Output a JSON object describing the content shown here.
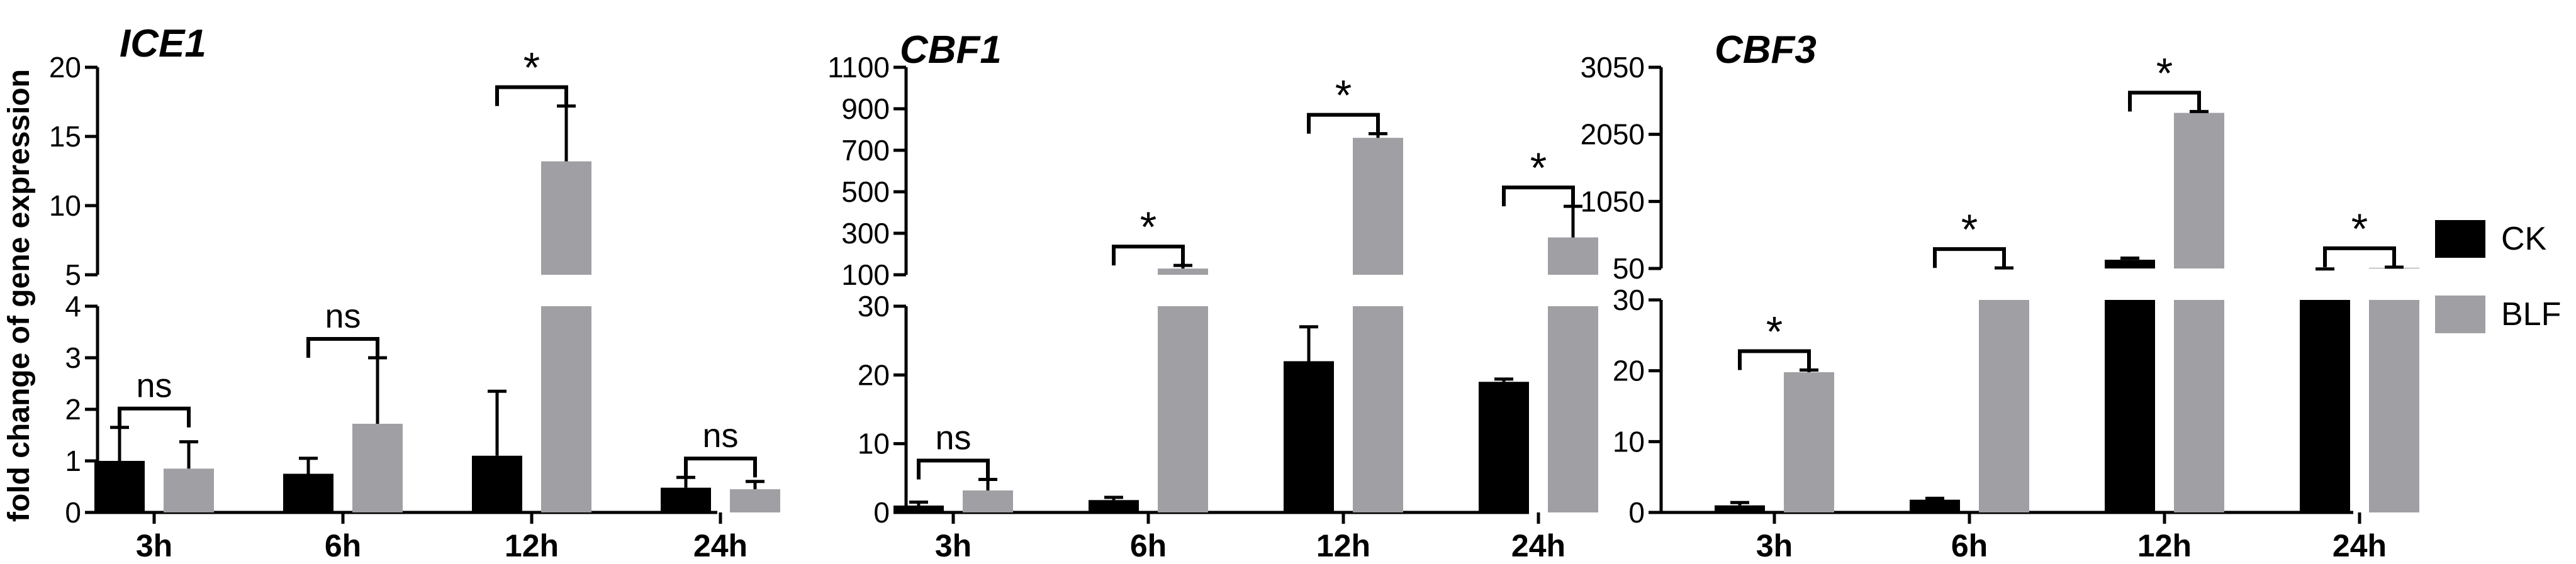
{
  "figure": {
    "ylabel": "fold change of gene expression",
    "legend": [
      {
        "label": "CK",
        "color": "#000000"
      },
      {
        "label": "BLF",
        "color": "#a0a0a4"
      }
    ]
  },
  "chart_data": [
    {
      "type": "bar",
      "title": "ICE1",
      "xlabel": "",
      "ylabel": "fold change of gene expression",
      "categories": [
        "3h",
        "6h",
        "12h",
        "24h"
      ],
      "series": [
        {
          "name": "CK",
          "values": [
            1.0,
            0.75,
            1.1,
            0.48
          ],
          "errors": [
            0.65,
            0.3,
            1.25,
            0.2
          ]
        },
        {
          "name": "BLF",
          "values": [
            0.85,
            1.72,
            13.2,
            0.45
          ],
          "errors": [
            0.52,
            1.28,
            4.0,
            0.15
          ]
        }
      ],
      "annotations": [
        "ns",
        "ns",
        "*",
        "ns"
      ],
      "y_axis_break": true,
      "ylim_lower": [
        0,
        4
      ],
      "ylim_upper": [
        5,
        20
      ],
      "yticks_lower": [
        "0",
        "1",
        "2",
        "3",
        "4"
      ],
      "yticks_upper": [
        "5",
        "10",
        "15",
        "20"
      ]
    },
    {
      "type": "bar",
      "title": "CBF1",
      "xlabel": "",
      "ylabel": "",
      "categories": [
        "3h",
        "6h",
        "12h",
        "24h"
      ],
      "series": [
        {
          "name": "CK",
          "values": [
            1.0,
            1.8,
            22.0,
            19.0
          ],
          "errors": [
            0.5,
            0.4,
            5.0,
            0.4
          ]
        },
        {
          "name": "BLF",
          "values": [
            3.2,
            130,
            760,
            280
          ],
          "errors": [
            1.6,
            15,
            20,
            150
          ]
        }
      ],
      "annotations": [
        "ns",
        "*",
        "*",
        "*"
      ],
      "y_axis_break": true,
      "ylim_lower": [
        0,
        30
      ],
      "ylim_upper": [
        100,
        1100
      ],
      "yticks_lower": [
        "0",
        "10",
        "20",
        "30"
      ],
      "yticks_upper": [
        "100",
        "300",
        "500",
        "700",
        "900",
        "1100"
      ]
    },
    {
      "type": "bar",
      "title": "CBF3",
      "xlabel": "",
      "ylabel": "",
      "categories": [
        "3h",
        "6h",
        "12h",
        "24h"
      ],
      "series": [
        {
          "name": "CK",
          "values": [
            1.0,
            1.8,
            180,
            40
          ],
          "errors": [
            0.4,
            0.2,
            25,
            3
          ]
        },
        {
          "name": "BLF",
          "values": [
            19.8,
            52,
            2370,
            60
          ],
          "errors": [
            0.3,
            6,
            20,
            10
          ]
        }
      ],
      "annotations": [
        "*",
        "*",
        "*",
        "*"
      ],
      "y_axis_break": true,
      "ylim_lower": [
        0,
        30
      ],
      "ylim_upper": [
        50,
        3050
      ],
      "yticks_lower": [
        "0",
        "10",
        "20",
        "30"
      ],
      "yticks_upper": [
        "50",
        "1050",
        "2050",
        "3050"
      ]
    }
  ]
}
